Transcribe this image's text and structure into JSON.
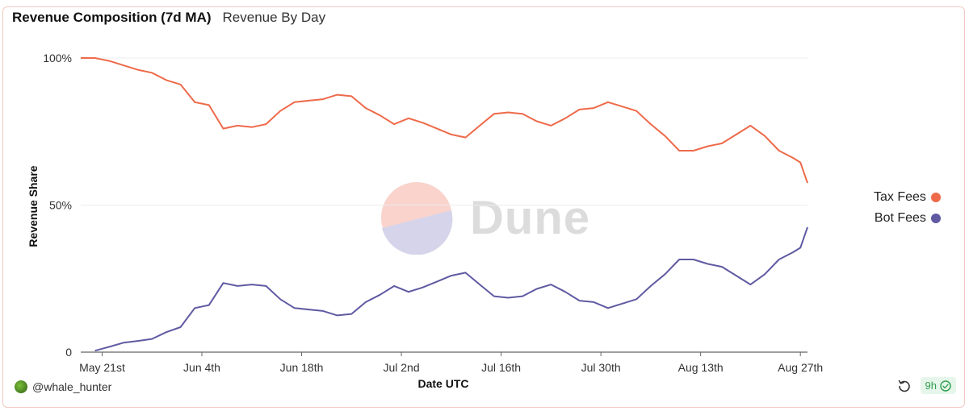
{
  "tabs": [
    {
      "label": "Revenue Composition (7d MA)",
      "active": true
    },
    {
      "label": "Revenue By Day",
      "active": false
    }
  ],
  "watermark": {
    "text": "Dune"
  },
  "author": {
    "handle": "@whale_hunter"
  },
  "footer": {
    "age_badge": "9h"
  },
  "colors": {
    "tax_fees": "#ee6a4a",
    "bot_fees": "#5f5aa2",
    "grid": "#ececec"
  },
  "chart_data": {
    "type": "line",
    "xlabel": "Date UTC",
    "ylabel": "Revenue Share",
    "x_start": "May 18",
    "x_end": "Aug 28",
    "x_tick_labels": [
      "May 21st",
      "Jun 4th",
      "Jun 18th",
      "Jul 2nd",
      "Jul 16th",
      "Jul 30th",
      "Aug 13th",
      "Aug 27th"
    ],
    "x_tick_dates": [
      "May 21",
      "Jun 4",
      "Jun 18",
      "Jul 2",
      "Jul 16",
      "Jul 30",
      "Aug 13",
      "Aug 27"
    ],
    "y_ticks": [
      {
        "value": 0,
        "label": "0"
      },
      {
        "value": 0.5,
        "label": "50%"
      },
      {
        "value": 1.0,
        "label": "100%"
      }
    ],
    "ylim": [
      0,
      1
    ],
    "legend_position": "right",
    "series": [
      {
        "name": "Tax Fees",
        "color": "#ee6a4a",
        "points": [
          [
            "May 18",
            1.0
          ],
          [
            "May 20",
            1.0
          ],
          [
            "May 22",
            0.99
          ],
          [
            "May 24",
            0.975
          ],
          [
            "May 26",
            0.96
          ],
          [
            "May 28",
            0.95
          ],
          [
            "May 30",
            0.925
          ],
          [
            "Jun 1",
            0.91
          ],
          [
            "Jun 3",
            0.85
          ],
          [
            "Jun 5",
            0.84
          ],
          [
            "Jun 7",
            0.76
          ],
          [
            "Jun 9",
            0.77
          ],
          [
            "Jun 11",
            0.765
          ],
          [
            "Jun 13",
            0.775
          ],
          [
            "Jun 15",
            0.82
          ],
          [
            "Jun 17",
            0.85
          ],
          [
            "Jun 19",
            0.855
          ],
          [
            "Jun 21",
            0.86
          ],
          [
            "Jun 23",
            0.875
          ],
          [
            "Jun 25",
            0.87
          ],
          [
            "Jun 27",
            0.83
          ],
          [
            "Jun 29",
            0.805
          ],
          [
            "Jul 1",
            0.775
          ],
          [
            "Jul 3",
            0.795
          ],
          [
            "Jul 5",
            0.78
          ],
          [
            "Jul 7",
            0.76
          ],
          [
            "Jul 9",
            0.74
          ],
          [
            "Jul 11",
            0.73
          ],
          [
            "Jul 13",
            0.77
          ],
          [
            "Jul 15",
            0.81
          ],
          [
            "Jul 17",
            0.815
          ],
          [
            "Jul 19",
            0.81
          ],
          [
            "Jul 21",
            0.785
          ],
          [
            "Jul 23",
            0.77
          ],
          [
            "Jul 25",
            0.795
          ],
          [
            "Jul 27",
            0.825
          ],
          [
            "Jul 29",
            0.83
          ],
          [
            "Jul 31",
            0.85
          ],
          [
            "Aug 2",
            0.835
          ],
          [
            "Aug 4",
            0.82
          ],
          [
            "Aug 6",
            0.775
          ],
          [
            "Aug 8",
            0.735
          ],
          [
            "Aug 10",
            0.685
          ],
          [
            "Aug 12",
            0.685
          ],
          [
            "Aug 14",
            0.7
          ],
          [
            "Aug 16",
            0.71
          ],
          [
            "Aug 18",
            0.74
          ],
          [
            "Aug 20",
            0.77
          ],
          [
            "Aug 22",
            0.735
          ],
          [
            "Aug 24",
            0.685
          ],
          [
            "Aug 26",
            0.66
          ],
          [
            "Aug 27",
            0.645
          ],
          [
            "Aug 28",
            0.575
          ]
        ]
      },
      {
        "name": "Bot Fees",
        "color": "#5f5aa2",
        "points": [
          [
            "May 20",
            0.005
          ],
          [
            "May 22",
            0.018
          ],
          [
            "May 24",
            0.032
          ],
          [
            "May 26",
            0.038
          ],
          [
            "May 28",
            0.045
          ],
          [
            "May 30",
            0.068
          ],
          [
            "Jun 1",
            0.085
          ],
          [
            "Jun 3",
            0.15
          ],
          [
            "Jun 5",
            0.16
          ],
          [
            "Jun 7",
            0.235
          ],
          [
            "Jun 9",
            0.225
          ],
          [
            "Jun 11",
            0.23
          ],
          [
            "Jun 13",
            0.225
          ],
          [
            "Jun 15",
            0.18
          ],
          [
            "Jun 17",
            0.15
          ],
          [
            "Jun 19",
            0.145
          ],
          [
            "Jun 21",
            0.14
          ],
          [
            "Jun 23",
            0.125
          ],
          [
            "Jun 25",
            0.13
          ],
          [
            "Jun 27",
            0.17
          ],
          [
            "Jun 29",
            0.195
          ],
          [
            "Jul 1",
            0.225
          ],
          [
            "Jul 3",
            0.205
          ],
          [
            "Jul 5",
            0.22
          ],
          [
            "Jul 7",
            0.24
          ],
          [
            "Jul 9",
            0.26
          ],
          [
            "Jul 11",
            0.27
          ],
          [
            "Jul 13",
            0.23
          ],
          [
            "Jul 15",
            0.19
          ],
          [
            "Jul 17",
            0.185
          ],
          [
            "Jul 19",
            0.19
          ],
          [
            "Jul 21",
            0.215
          ],
          [
            "Jul 23",
            0.23
          ],
          [
            "Jul 25",
            0.205
          ],
          [
            "Jul 27",
            0.175
          ],
          [
            "Jul 29",
            0.17
          ],
          [
            "Jul 31",
            0.15
          ],
          [
            "Aug 2",
            0.165
          ],
          [
            "Aug 4",
            0.18
          ],
          [
            "Aug 6",
            0.225
          ],
          [
            "Aug 8",
            0.265
          ],
          [
            "Aug 10",
            0.315
          ],
          [
            "Aug 12",
            0.315
          ],
          [
            "Aug 14",
            0.3
          ],
          [
            "Aug 16",
            0.29
          ],
          [
            "Aug 18",
            0.26
          ],
          [
            "Aug 20",
            0.23
          ],
          [
            "Aug 22",
            0.265
          ],
          [
            "Aug 24",
            0.315
          ],
          [
            "Aug 26",
            0.34
          ],
          [
            "Aug 27",
            0.355
          ],
          [
            "Aug 28",
            0.425
          ]
        ]
      }
    ]
  }
}
